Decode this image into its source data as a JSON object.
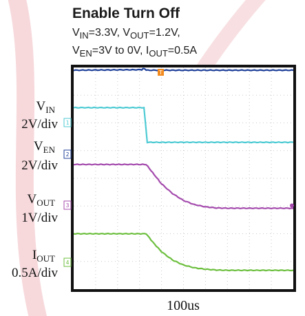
{
  "chart_data": {
    "type": "line",
    "title": "Enable Turn Off",
    "conditions": {
      "line1": {
        "vin_main": "V",
        "vin_sub": "IN",
        "vin_rest": "=3.3V, ",
        "vout_main": "V",
        "vout_sub": "OUT",
        "vout_rest": "=1.2V,"
      },
      "line2": {
        "ven_main": "V",
        "ven_sub": "EN",
        "ven_rest": "=3V to 0V, ",
        "iout_main": "I",
        "iout_sub": "OUT",
        "iout_rest": "=0.5A"
      }
    },
    "xlabel": "100us",
    "grid": true,
    "x_divisions": 10,
    "y_divisions": 8,
    "trigger_marker": "T",
    "series": [
      {
        "name_main": "V",
        "name_sub": "IN",
        "scale": "2V/div",
        "channel": "1",
        "color": "#4ccad3",
        "points": [
          [
            0,
            1.45
          ],
          [
            3.2,
            1.45
          ],
          [
            3.35,
            2.7
          ],
          [
            10,
            2.7
          ]
        ]
      },
      {
        "name_main": "V",
        "name_sub": "EN",
        "scale": "2V/div",
        "channel": "2",
        "color": "#1d3f99",
        "points": [
          [
            0,
            0.1
          ],
          [
            3.1,
            0.08
          ],
          [
            3.2,
            0.03
          ],
          [
            3.3,
            0.1
          ],
          [
            10,
            0.1
          ]
        ]
      },
      {
        "name_main": "V",
        "name_sub": "OUT",
        "scale": "1V/div",
        "channel": "3",
        "color": "#a44bad",
        "points": [
          [
            0,
            3.5
          ],
          [
            3.3,
            3.5
          ],
          [
            3.6,
            3.8
          ],
          [
            4.0,
            4.2
          ],
          [
            4.5,
            4.55
          ],
          [
            5.0,
            4.8
          ],
          [
            5.5,
            4.95
          ],
          [
            6.0,
            5.03
          ],
          [
            6.5,
            5.07
          ],
          [
            7.0,
            5.08
          ],
          [
            10,
            5.08
          ]
        ]
      },
      {
        "name_main": "I",
        "name_sub": "OUT",
        "scale": "0.5A/div",
        "channel": "4",
        "color": "#6cbf3e",
        "points": [
          [
            0,
            6.0
          ],
          [
            3.3,
            6.0
          ],
          [
            3.6,
            6.3
          ],
          [
            4.0,
            6.65
          ],
          [
            4.5,
            6.95
          ],
          [
            5.0,
            7.13
          ],
          [
            5.5,
            7.23
          ],
          [
            6.0,
            7.28
          ],
          [
            6.5,
            7.31
          ],
          [
            7.0,
            7.32
          ],
          [
            10,
            7.32
          ]
        ]
      }
    ]
  }
}
